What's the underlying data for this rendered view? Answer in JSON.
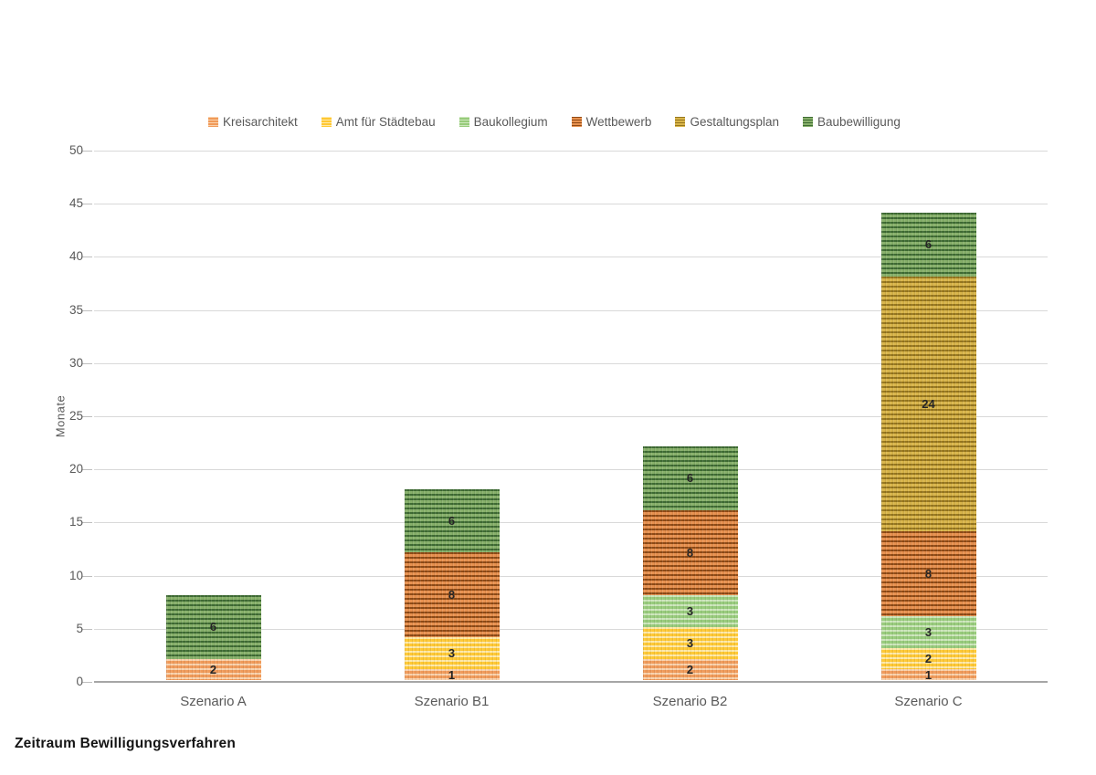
{
  "caption": "Zeitraum Bewilligungsverfahren",
  "chart_data": {
    "type": "bar",
    "stacked": true,
    "title": "Zeitraum Bewilligungsverfahren",
    "categories": [
      "Szenario A",
      "Szenario B1",
      "Szenario B2",
      "Szenario C"
    ],
    "series": [
      {
        "name": "Kreisarchitekt",
        "values": [
          2,
          1,
          2,
          1
        ],
        "base_color": "#F09A59",
        "stripe_color": "#FAD2AC"
      },
      {
        "name": "Amt für Städtebau",
        "values": [
          0,
          3,
          3,
          2
        ],
        "base_color": "#FFC833",
        "stripe_color": "#FFE9A8"
      },
      {
        "name": "Baukollegium",
        "values": [
          0,
          0,
          3,
          3
        ],
        "base_color": "#97CB7B",
        "stripe_color": "#CDE7BC"
      },
      {
        "name": "Wettbewerb",
        "values": [
          0,
          8,
          8,
          8
        ],
        "base_color": "#E8914F",
        "stripe_color": "#8F4A15"
      },
      {
        "name": "Gestaltungsplan",
        "values": [
          0,
          0,
          0,
          24
        ],
        "base_color": "#D9B54A",
        "stripe_color": "#96761E"
      },
      {
        "name": "Baubewilligung",
        "values": [
          6,
          6,
          6,
          6
        ],
        "base_color": "#87B06A",
        "stripe_color": "#3E6B33"
      }
    ],
    "totals": [
      8,
      18,
      22,
      44
    ],
    "xlabel": "",
    "ylabel": "Monate",
    "ylim": [
      0,
      50
    ],
    "yticks": [
      0,
      5,
      10,
      15,
      20,
      25,
      30,
      35,
      40,
      45,
      50
    ],
    "grid": true,
    "legend_position": "top"
  },
  "colors": {
    "gridline": "#D9D9D9",
    "axis_zero_line": "#A6A6A6",
    "tick_label": "#595959",
    "value_label": "#262626",
    "caption": "#141414"
  }
}
